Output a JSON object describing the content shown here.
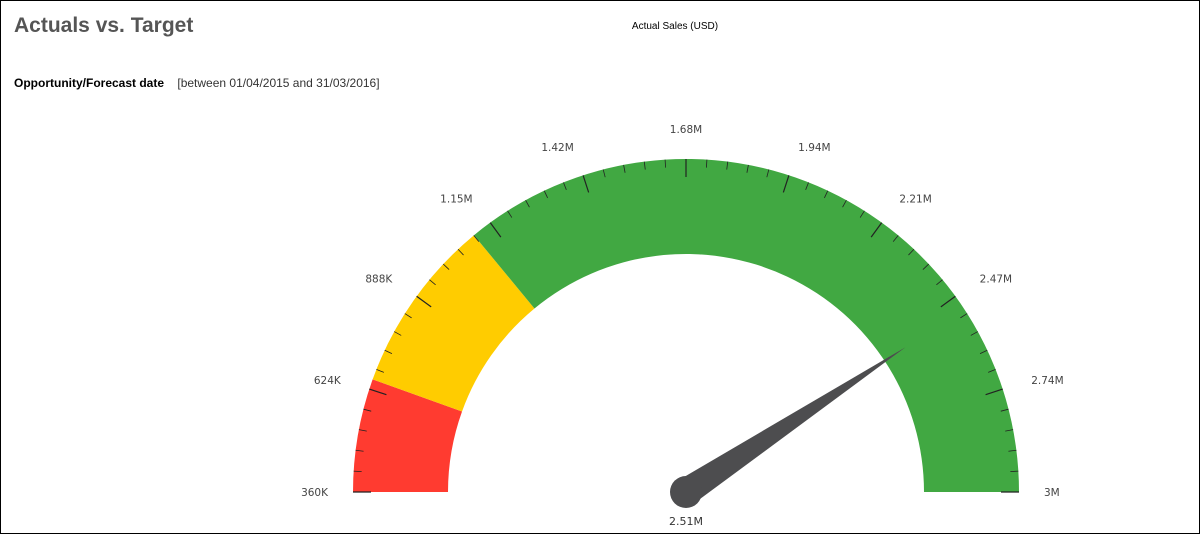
{
  "header": {
    "title": "Actuals vs. Target"
  },
  "filter": {
    "label": "Opportunity/Forecast date",
    "value": "[between 01/04/2015 and 31/03/2016]"
  },
  "chart_data": {
    "type": "gauge",
    "title": "Actual Sales (USD)",
    "min": 360000,
    "max": 3000000,
    "value": 2510000,
    "value_label": "2.51M",
    "ticks": [
      {
        "value": 360000,
        "label": "360K"
      },
      {
        "value": 624000,
        "label": "624K"
      },
      {
        "value": 888000,
        "label": "888K"
      },
      {
        "value": 1152000,
        "label": "1.15M"
      },
      {
        "value": 1416000,
        "label": "1.42M"
      },
      {
        "value": 1680000,
        "label": "1.68M"
      },
      {
        "value": 1944000,
        "label": "1.94M"
      },
      {
        "value": 2208000,
        "label": "2.21M"
      },
      {
        "value": 2472000,
        "label": "2.47M"
      },
      {
        "value": 2736000,
        "label": "2.74M"
      },
      {
        "value": 3000000,
        "label": "3M"
      }
    ],
    "minor_ticks_per_major": 4,
    "bands": [
      {
        "from": 360000,
        "to": 650000,
        "color": "#ff3b30"
      },
      {
        "from": 650000,
        "to": 1100000,
        "color": "#ffcc00"
      },
      {
        "from": 1100000,
        "to": 3000000,
        "color": "#41a842"
      }
    ],
    "needle_color": "#4d4d4f"
  }
}
